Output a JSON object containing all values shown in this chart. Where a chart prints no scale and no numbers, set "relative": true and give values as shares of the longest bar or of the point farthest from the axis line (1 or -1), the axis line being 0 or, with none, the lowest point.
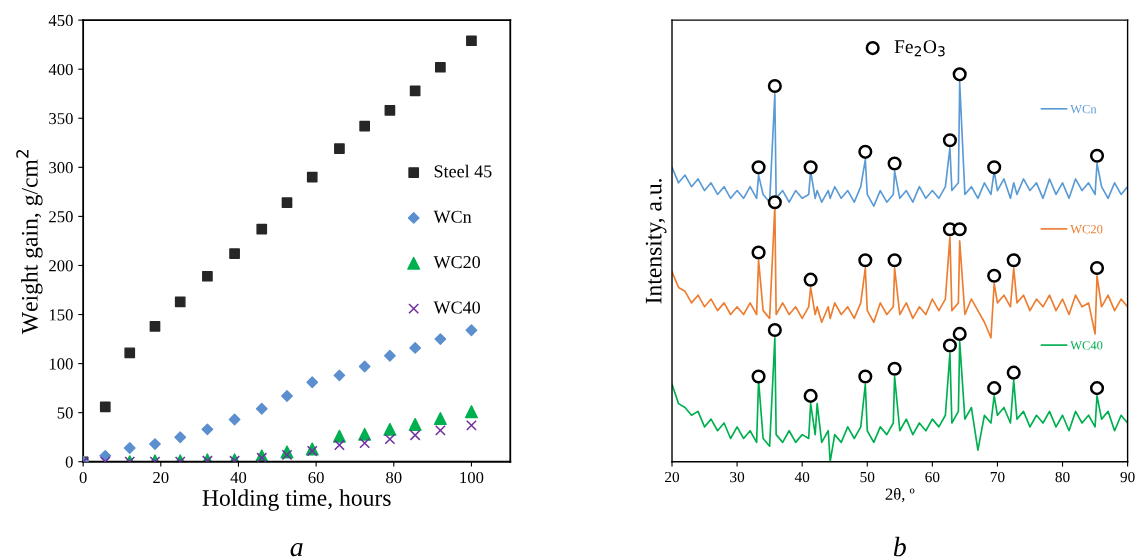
{
  "chart_data": [
    {
      "type": "scatter",
      "xlabel": "Holding time, hours",
      "ylabel": "Weight gain, g/cm$^{2}$",
      "xlim": [
        0,
        110
      ],
      "xticks": [
        0,
        20,
        40,
        60,
        80,
        100
      ],
      "ylim": [
        0,
        450
      ],
      "yticks": [
        0,
        50,
        100,
        150,
        200,
        250,
        300,
        350,
        400,
        450
      ],
      "grid": false,
      "legend": "right",
      "x": [
        0,
        5.7,
        12,
        18.5,
        25,
        32,
        39,
        46,
        52.5,
        59,
        66,
        72.5,
        79,
        85.5,
        92,
        100
      ],
      "series": [
        {
          "name": "Steel 45",
          "color": "#262626",
          "marker": "square",
          "values": [
            0,
            56,
            111,
            138,
            163,
            189,
            212,
            237,
            264,
            290,
            319,
            342,
            358,
            378,
            402,
            429
          ]
        },
        {
          "name": "WCn",
          "color": "#5b8fcf",
          "marker": "diamond",
          "values": [
            0,
            6,
            14,
            18,
            25,
            33,
            43,
            54,
            67,
            81,
            88,
            97,
            108,
            116,
            125,
            134
          ]
        },
        {
          "name": "WC20",
          "color": "#00b050",
          "marker": "triangle",
          "values": [
            null,
            null,
            0,
            1,
            1,
            2,
            2,
            6,
            10,
            13,
            26,
            28,
            33,
            38,
            44,
            51
          ]
        },
        {
          "name": "WC40",
          "color": "#7030a0",
          "marker": "cross",
          "values": [
            0,
            0,
            0,
            0,
            0,
            1,
            1,
            4,
            7,
            11,
            17,
            19,
            23,
            27,
            32,
            37
          ]
        }
      ],
      "annotations": [
        "a"
      ]
    },
    {
      "type": "line",
      "relative": true,
      "xlabel": "2θ, º",
      "ylabel": "Intensity, a.u.",
      "xlim": [
        20,
        90
      ],
      "xticks": [
        20,
        30,
        40,
        50,
        60,
        70,
        80,
        90
      ],
      "tick_labels": "x",
      "grid": false,
      "legend": "top",
      "x": [
        20,
        21,
        22,
        23,
        24,
        25,
        26,
        27,
        28,
        29,
        30,
        31,
        32,
        33,
        33.3,
        34,
        35,
        35.8,
        36,
        37,
        38,
        39,
        40,
        41,
        41.3,
        42,
        42.3,
        43,
        44,
        44.3,
        45,
        46,
        47,
        48,
        49,
        49.7,
        50,
        51,
        52,
        53,
        54,
        54.2,
        55,
        56,
        57,
        58,
        59,
        60,
        61,
        62,
        62.7,
        63,
        64,
        64.2,
        65,
        66,
        67,
        68,
        69,
        69.5,
        70,
        71,
        72,
        72.5,
        73,
        74,
        75,
        76,
        77,
        78,
        79,
        80,
        81,
        82,
        83,
        84,
        85,
        85.3,
        86,
        87,
        88,
        89,
        90
      ],
      "series": [
        {
          "name": "WCn",
          "color": "#5b9bd5",
          "values": [
            0.76,
            0.72,
            0.74,
            0.71,
            0.73,
            0.7,
            0.72,
            0.69,
            0.71,
            0.68,
            0.7,
            0.68,
            0.71,
            0.68,
            0.74,
            0.69,
            0.67,
            0.95,
            0.68,
            0.7,
            0.67,
            0.7,
            0.68,
            0.69,
            0.75,
            0.68,
            0.7,
            0.67,
            0.7,
            0.68,
            0.71,
            0.68,
            0.7,
            0.67,
            0.71,
            0.78,
            0.69,
            0.66,
            0.7,
            0.67,
            0.69,
            0.75,
            0.68,
            0.7,
            0.67,
            0.71,
            0.68,
            0.7,
            0.68,
            0.71,
            0.81,
            0.7,
            0.72,
            0.98,
            0.69,
            0.71,
            0.68,
            0.72,
            0.69,
            0.75,
            0.7,
            0.73,
            0.68,
            0.72,
            0.69,
            0.73,
            0.7,
            0.72,
            0.68,
            0.73,
            0.69,
            0.72,
            0.68,
            0.73,
            0.7,
            0.72,
            0.69,
            0.77,
            0.71,
            0.68,
            0.72,
            0.69,
            0.71
          ]
        },
        {
          "name": "WC20",
          "color": "#ed7d31",
          "values": [
            0.49,
            0.45,
            0.44,
            0.41,
            0.43,
            0.4,
            0.42,
            0.39,
            0.41,
            0.38,
            0.4,
            0.38,
            0.41,
            0.38,
            0.52,
            0.39,
            0.37,
            0.66,
            0.38,
            0.41,
            0.38,
            0.4,
            0.37,
            0.4,
            0.45,
            0.38,
            0.4,
            0.36,
            0.4,
            0.37,
            0.41,
            0.38,
            0.4,
            0.37,
            0.41,
            0.5,
            0.39,
            0.36,
            0.41,
            0.38,
            0.4,
            0.5,
            0.38,
            0.41,
            0.37,
            0.4,
            0.38,
            0.42,
            0.39,
            0.42,
            0.58,
            0.39,
            0.41,
            0.57,
            0.38,
            0.42,
            0.39,
            0.36,
            0.32,
            0.46,
            0.41,
            0.43,
            0.4,
            0.5,
            0.41,
            0.43,
            0.39,
            0.42,
            0.4,
            0.43,
            0.39,
            0.42,
            0.38,
            0.43,
            0.4,
            0.41,
            0.33,
            0.48,
            0.4,
            0.43,
            0.39,
            0.42,
            0.4
          ]
        },
        {
          "name": "WC40",
          "color": "#00b050",
          "values": [
            0.2,
            0.15,
            0.14,
            0.12,
            0.13,
            0.09,
            0.11,
            0.08,
            0.1,
            0.06,
            0.09,
            0.06,
            0.08,
            0.05,
            0.21,
            0.06,
            0.04,
            0.32,
            0.07,
            0.05,
            0.08,
            0.05,
            0.07,
            0.06,
            0.15,
            0.07,
            0.15,
            0.05,
            0.08,
            0.0,
            0.07,
            0.05,
            0.09,
            0.06,
            0.09,
            0.2,
            0.08,
            0.05,
            0.09,
            0.07,
            0.1,
            0.22,
            0.08,
            0.11,
            0.07,
            0.1,
            0.08,
            0.11,
            0.09,
            0.12,
            0.28,
            0.1,
            0.13,
            0.31,
            0.11,
            0.14,
            0.03,
            0.12,
            0.1,
            0.17,
            0.12,
            0.14,
            0.1,
            0.21,
            0.11,
            0.13,
            0.09,
            0.12,
            0.1,
            0.13,
            0.09,
            0.12,
            0.08,
            0.13,
            0.1,
            0.12,
            0.09,
            0.17,
            0.11,
            0.13,
            0.08,
            0.12,
            0.1
          ]
        },
        {
          "name": "Fe$_{2}$O$_{3}$",
          "type": "scatter",
          "marker": "circle",
          "color": "#000000",
          "x": [
            33.3,
            35.8,
            41.3,
            49.7,
            54.2,
            62.7,
            64.2,
            69.5,
            85.3,
            33.3,
            35.8,
            41.3,
            49.7,
            54.2,
            62.7,
            64.2,
            69.5,
            72.5,
            85.3,
            33.3,
            35.8,
            41.3,
            49.7,
            54.2,
            62.7,
            64.2,
            69.5,
            72.5,
            85.3
          ],
          "values": [
            0.76,
            0.97,
            0.76,
            0.8,
            0.77,
            0.83,
            1.0,
            0.76,
            0.79,
            0.54,
            0.67,
            0.47,
            0.52,
            0.52,
            0.6,
            0.6,
            0.48,
            0.52,
            0.5,
            0.22,
            0.34,
            0.17,
            0.22,
            0.24,
            0.3,
            0.33,
            0.19,
            0.23,
            0.19
          ]
        }
      ],
      "annotations": [
        "b"
      ]
    }
  ]
}
